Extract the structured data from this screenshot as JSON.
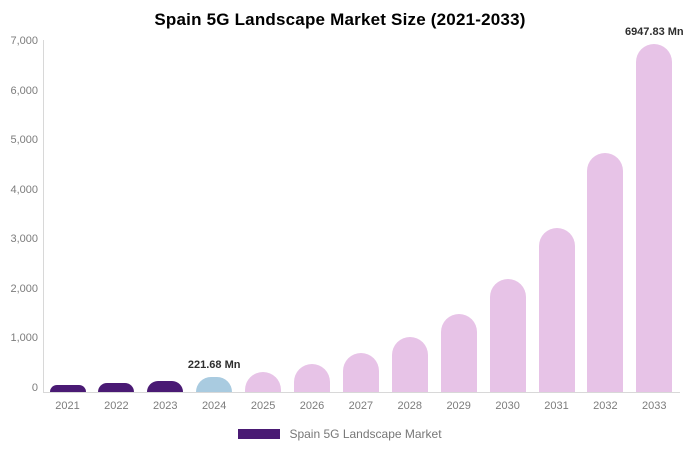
{
  "title": "Spain 5G Landscape Market Size (2021-2033)",
  "chart_data": {
    "type": "bar",
    "title": "Spain 5G Landscape Market Size (2021-2033)",
    "categories": [
      "2021",
      "2022",
      "2023",
      "2024",
      "2025",
      "2026",
      "2027",
      "2028",
      "2029",
      "2030",
      "2031",
      "2032",
      "2033"
    ],
    "values": [
      70,
      103,
      151,
      221.68,
      325,
      477,
      699,
      1025,
      1502,
      2202,
      3228,
      4732,
      6947.83
    ],
    "unit": "Mn",
    "xlabel": "",
    "ylabel": "",
    "ylim": [
      0,
      7000
    ],
    "grid": false,
    "y_ticks": [
      {
        "value": 0,
        "label": "0"
      },
      {
        "value": 1000,
        "label": "1,000"
      },
      {
        "value": 2000,
        "label": "2,000"
      },
      {
        "value": 3000,
        "label": "3,000"
      },
      {
        "value": 4000,
        "label": "4,000"
      },
      {
        "value": 5000,
        "label": "5,000"
      },
      {
        "value": 6000,
        "label": "6,000"
      },
      {
        "value": 7000,
        "label": "7,000"
      }
    ],
    "bar_colors": [
      "#4A1A74",
      "#4A1A74",
      "#4A1A74",
      "#A9CBE0",
      "#E7C3E7",
      "#E7C3E7",
      "#E7C3E7",
      "#E7C3E7",
      "#E7C3E7",
      "#E7C3E7",
      "#E7C3E7",
      "#E7C3E7",
      "#E7C3E7"
    ],
    "annotations": [
      {
        "category": "2024",
        "label": "221.68 Mn"
      },
      {
        "category": "2033",
        "label": "6947.83 Mn"
      }
    ],
    "legend_position": "bottom",
    "legend": [
      {
        "label": "Spain 5G Landscape Market",
        "color": "#4A1A74"
      }
    ]
  },
  "colors": {
    "historical_bar": "#4A1A74",
    "base_year_bar": "#A9CBE0",
    "forecast_bar": "#E7C3E7",
    "axis_line": "#D8D8D8",
    "tick_text": "#7C7C7C",
    "annotation_text": "#2E2E2E",
    "legend_text": "#777777",
    "title_text": "#000000"
  }
}
